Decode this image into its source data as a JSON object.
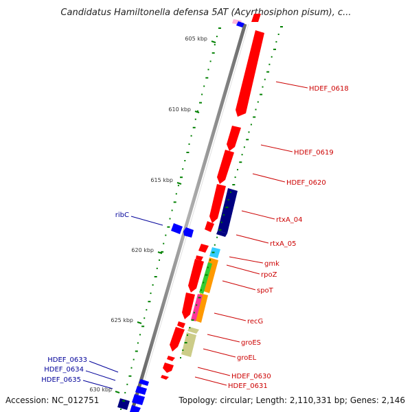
{
  "title": "Candidatus Hamiltonella defensa 5AT (Acyrthosiphon pisum), c...",
  "accession": "Accession: NC_012751",
  "topology": "Topology: circular; Length: 2,110,331 bp; Genes: 2,146",
  "ticks": [
    "605 kbp",
    "610 kbp",
    "615 kbp",
    "620 kbp",
    "625 kbp",
    "630 kbp"
  ],
  "genes_right": [
    "HDEF_0618",
    "HDEF_0619",
    "HDEF_0620",
    "rtxA_04",
    "rtxA_05",
    "gmk",
    "rpoZ",
    "spoT",
    "recG",
    "groES",
    "groEL",
    "HDEF_0630",
    "HDEF_0631"
  ],
  "genes_left": [
    "ribC",
    "HDEF_0633",
    "HDEF_0634",
    "HDEF_0635"
  ],
  "colors": {
    "forward_gene": "#ff0000",
    "reverse_gene": "#0000ff",
    "rtx_gene": "#000080",
    "gmk": "#33ccff",
    "rpoZ": "#ff9900",
    "spoT_a": "#33cc33",
    "spoT_b": "#ff3399",
    "groEL": "#cccc88",
    "gc_skew": "#008000",
    "right_label": "#cc0000",
    "left_label": "#000099"
  }
}
